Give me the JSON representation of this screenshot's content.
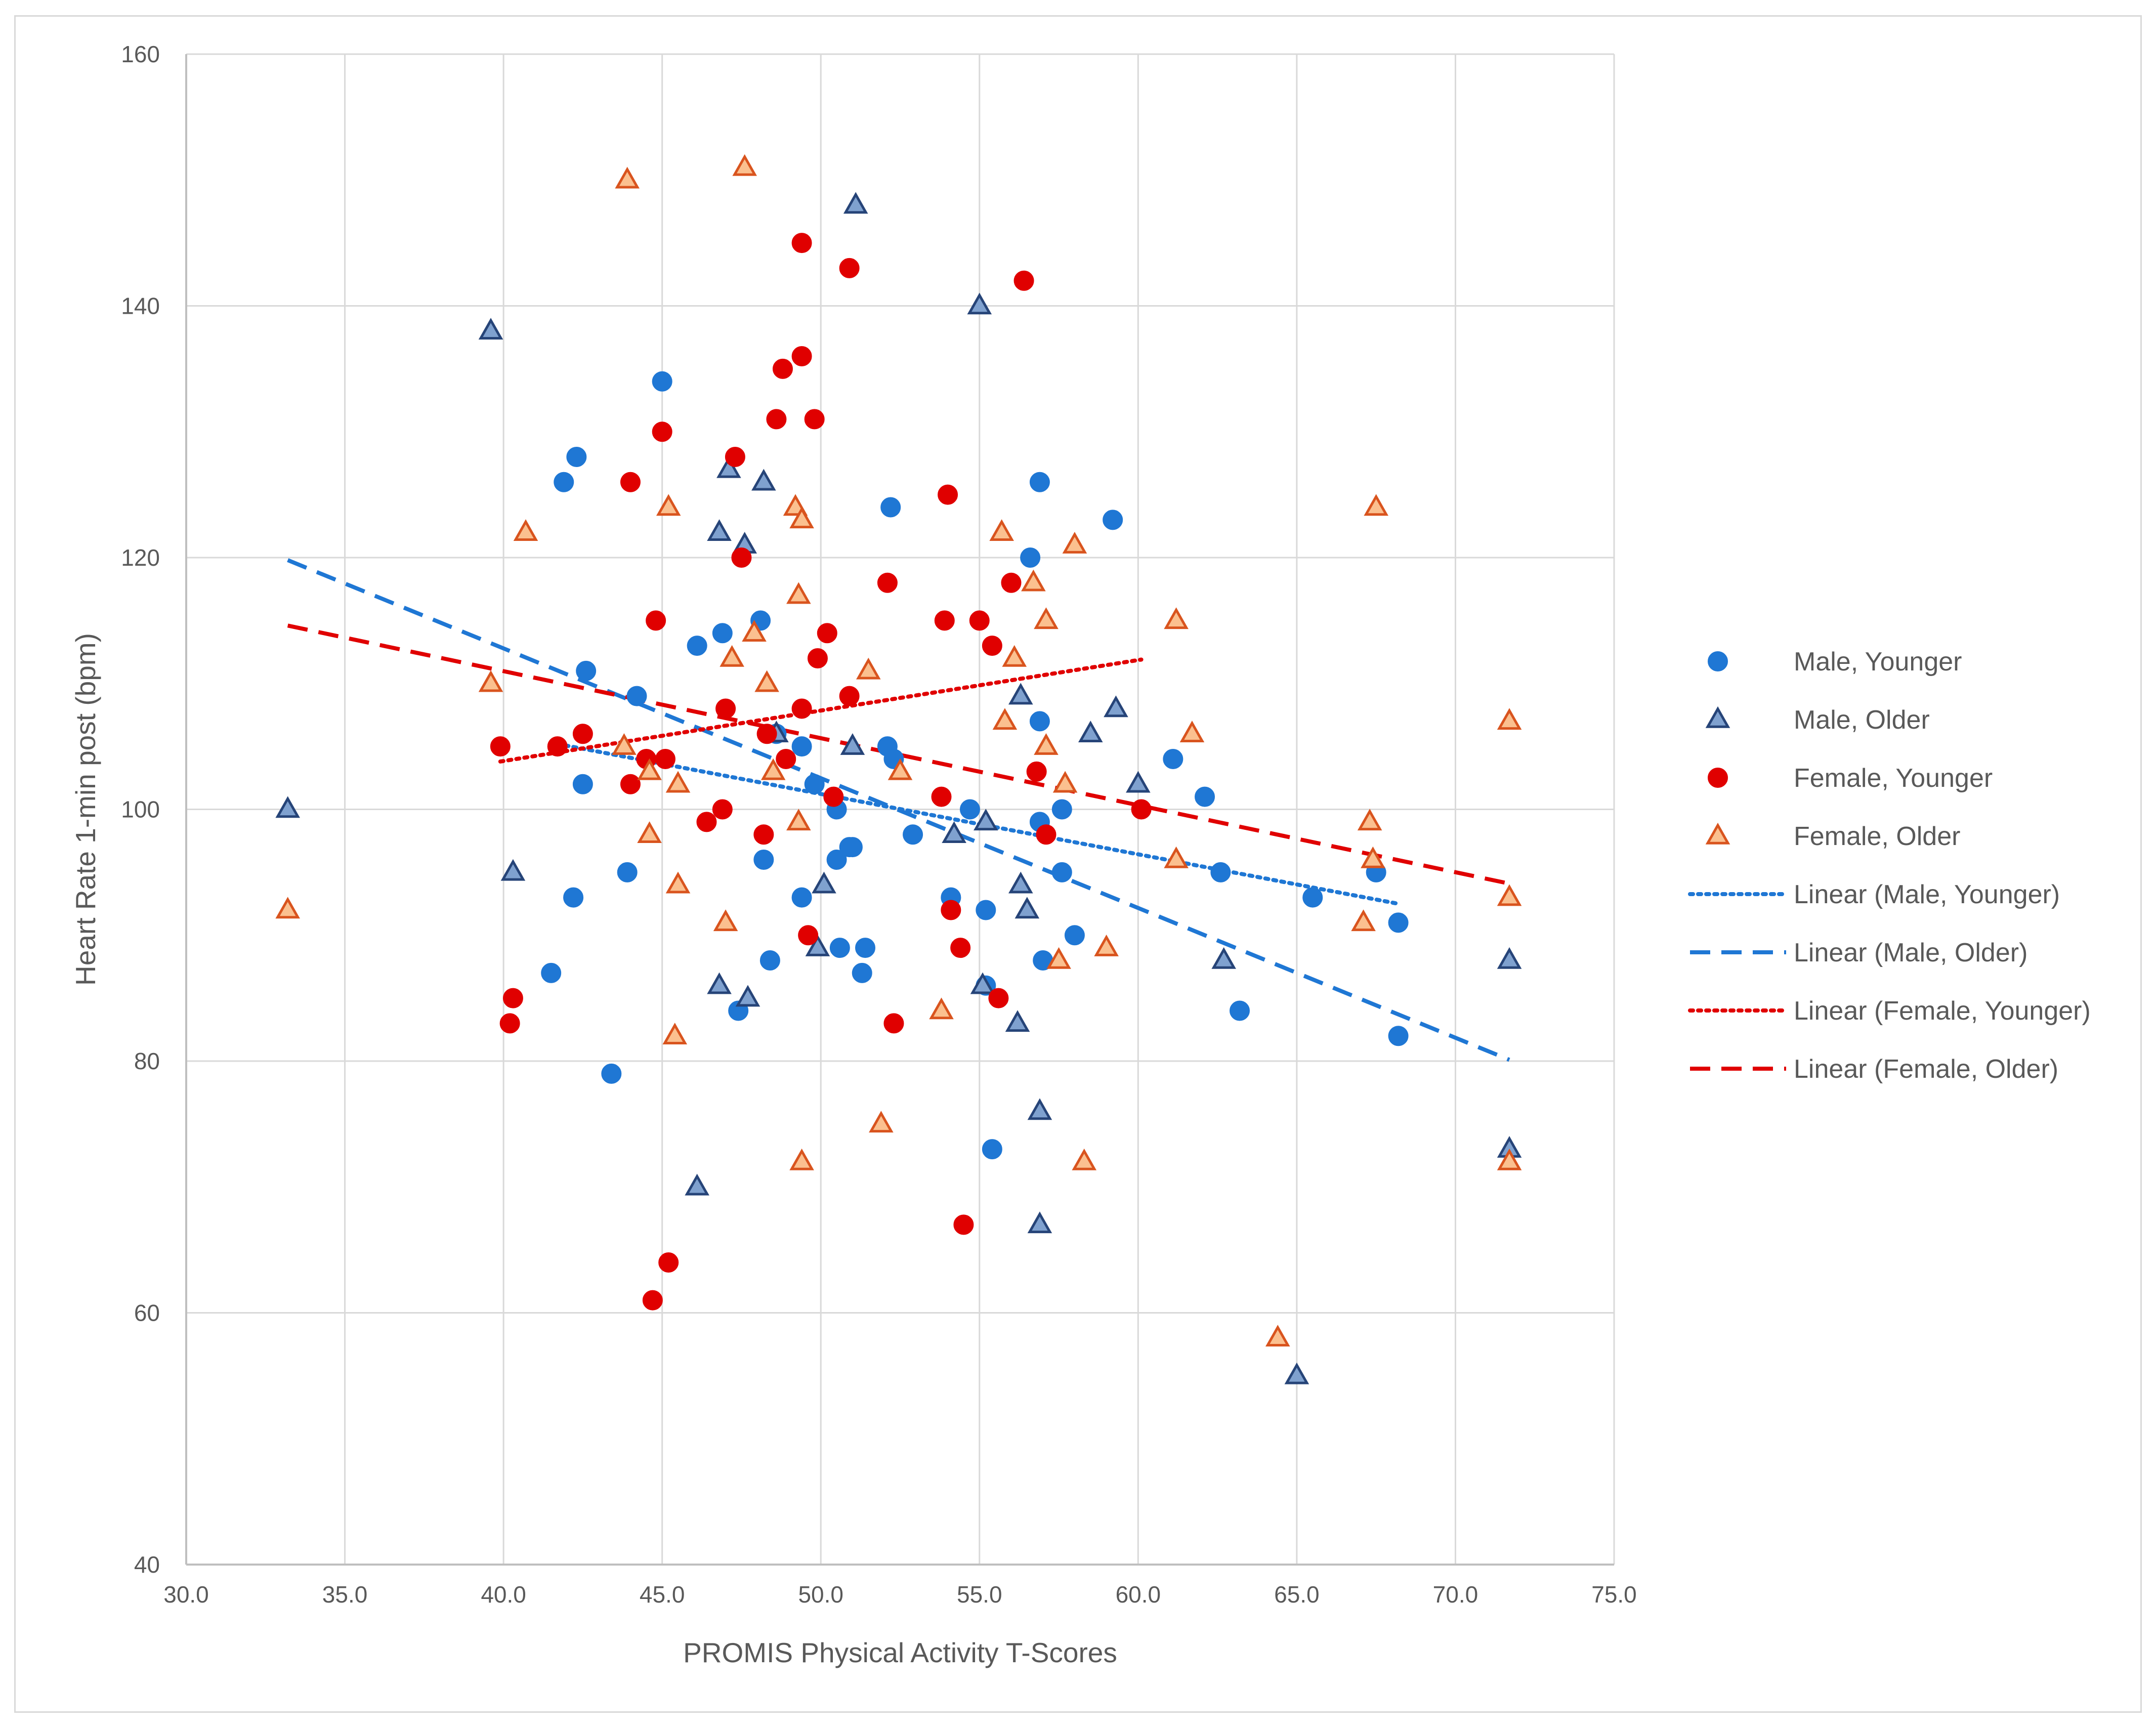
{
  "chart_data": {
    "type": "scatter",
    "title": "",
    "xlabel": "PROMIS Physical Activity T-Scores",
    "ylabel": "Heart Rate 1-min post (bpm)",
    "xlim": [
      30,
      75
    ],
    "ylim": [
      40,
      160
    ],
    "x_ticks": [
      30,
      35,
      40,
      45,
      50,
      55,
      60,
      65,
      70,
      75
    ],
    "x_tick_labels": [
      "30.0",
      "35.0",
      "40.0",
      "45.0",
      "50.0",
      "55.0",
      "60.0",
      "65.0",
      "70.0",
      "75.0"
    ],
    "y_ticks": [
      40,
      60,
      80,
      100,
      120,
      140,
      160
    ],
    "y_tick_labels": [
      "40",
      "60",
      "80",
      "100",
      "120",
      "140",
      "160"
    ],
    "grid": true,
    "legend_position": "right",
    "series": [
      {
        "name": "Male, Younger",
        "marker": "circle",
        "color": "#1f77d4",
        "points": [
          [
            41.9,
            126
          ],
          [
            42.3,
            128
          ],
          [
            42.6,
            111
          ],
          [
            42.5,
            102
          ],
          [
            42.2,
            93
          ],
          [
            41.5,
            87
          ],
          [
            43.4,
            79
          ],
          [
            43.9,
            95
          ],
          [
            44.2,
            109
          ],
          [
            45.0,
            134
          ],
          [
            46.1,
            113
          ],
          [
            46.9,
            114
          ],
          [
            47.4,
            84
          ],
          [
            48.1,
            115
          ],
          [
            48.2,
            96
          ],
          [
            48.4,
            88
          ],
          [
            48.6,
            106
          ],
          [
            49.4,
            105
          ],
          [
            49.4,
            93
          ],
          [
            49.8,
            102
          ],
          [
            50.5,
            100
          ],
          [
            50.5,
            96
          ],
          [
            50.6,
            89
          ],
          [
            50.9,
            97
          ],
          [
            51.0,
            97
          ],
          [
            51.3,
            87
          ],
          [
            51.4,
            89
          ],
          [
            52.1,
            105
          ],
          [
            52.2,
            124
          ],
          [
            52.3,
            104
          ],
          [
            52.9,
            98
          ],
          [
            54.1,
            93
          ],
          [
            54.7,
            100
          ],
          [
            55.2,
            92
          ],
          [
            55.2,
            86
          ],
          [
            55.4,
            73
          ],
          [
            56.6,
            120
          ],
          [
            56.9,
            126
          ],
          [
            56.9,
            99
          ],
          [
            57.0,
            88
          ],
          [
            57.6,
            95
          ],
          [
            57.6,
            100
          ],
          [
            56.9,
            107
          ],
          [
            58.0,
            90
          ],
          [
            59.2,
            123
          ],
          [
            61.1,
            104
          ],
          [
            62.1,
            101
          ],
          [
            62.6,
            95
          ],
          [
            63.2,
            84
          ],
          [
            65.5,
            93
          ],
          [
            67.5,
            95
          ],
          [
            68.2,
            91
          ],
          [
            68.2,
            82
          ]
        ]
      },
      {
        "name": "Male, Older",
        "marker": "triangle",
        "color": "#5b88bf",
        "points": [
          [
            33.2,
            100
          ],
          [
            39.6,
            138
          ],
          [
            40.3,
            95
          ],
          [
            46.1,
            70
          ],
          [
            46.8,
            86
          ],
          [
            46.8,
            122
          ],
          [
            47.1,
            127
          ],
          [
            47.7,
            85
          ],
          [
            47.6,
            121
          ],
          [
            48.2,
            126
          ],
          [
            48.6,
            106
          ],
          [
            49.9,
            89
          ],
          [
            50.1,
            94
          ],
          [
            51.0,
            105
          ],
          [
            51.1,
            148
          ],
          [
            54.2,
            98
          ],
          [
            55.0,
            140
          ],
          [
            55.2,
            99
          ],
          [
            55.1,
            86
          ],
          [
            56.2,
            83
          ],
          [
            56.3,
            94
          ],
          [
            56.5,
            92
          ],
          [
            56.3,
            109
          ],
          [
            56.9,
            76
          ],
          [
            56.9,
            67
          ],
          [
            58.5,
            106
          ],
          [
            59.3,
            108
          ],
          [
            60.0,
            102
          ],
          [
            62.7,
            88
          ],
          [
            65.0,
            55
          ],
          [
            71.7,
            88
          ],
          [
            71.7,
            73
          ]
        ]
      },
      {
        "name": "Female, Younger",
        "marker": "circle",
        "color": "#e00000",
        "points": [
          [
            39.9,
            105
          ],
          [
            40.2,
            83
          ],
          [
            40.3,
            85
          ],
          [
            41.7,
            105
          ],
          [
            42.5,
            106
          ],
          [
            44.0,
            102
          ],
          [
            44.0,
            126
          ],
          [
            44.5,
            104
          ],
          [
            44.7,
            61
          ],
          [
            44.8,
            115
          ],
          [
            45.0,
            130
          ],
          [
            45.1,
            104
          ],
          [
            45.2,
            64
          ],
          [
            46.4,
            99
          ],
          [
            46.9,
            100
          ],
          [
            47.0,
            108
          ],
          [
            47.3,
            128
          ],
          [
            47.5,
            120
          ],
          [
            48.2,
            98
          ],
          [
            48.3,
            106
          ],
          [
            48.6,
            131
          ],
          [
            48.8,
            135
          ],
          [
            48.9,
            104
          ],
          [
            49.4,
            145
          ],
          [
            49.4,
            136
          ],
          [
            49.4,
            108
          ],
          [
            49.6,
            90
          ],
          [
            49.8,
            131
          ],
          [
            49.9,
            112
          ],
          [
            50.2,
            114
          ],
          [
            50.4,
            101
          ],
          [
            50.9,
            143
          ],
          [
            50.9,
            109
          ],
          [
            52.1,
            118
          ],
          [
            52.3,
            83
          ],
          [
            53.8,
            101
          ],
          [
            53.9,
            115
          ],
          [
            54.0,
            125
          ],
          [
            54.1,
            92
          ],
          [
            54.4,
            89
          ],
          [
            54.5,
            67
          ],
          [
            55.0,
            115
          ],
          [
            55.4,
            113
          ],
          [
            55.6,
            85
          ],
          [
            56.0,
            118
          ],
          [
            56.4,
            142
          ],
          [
            56.8,
            103
          ],
          [
            57.1,
            98
          ],
          [
            60.1,
            100
          ]
        ]
      },
      {
        "name": "Female, Older",
        "marker": "triangle",
        "color": "#f28a3a",
        "points": [
          [
            33.2,
            92
          ],
          [
            39.6,
            110
          ],
          [
            40.7,
            122
          ],
          [
            43.8,
            105
          ],
          [
            43.9,
            150
          ],
          [
            44.6,
            98
          ],
          [
            44.6,
            103
          ],
          [
            45.2,
            124
          ],
          [
            45.4,
            82
          ],
          [
            45.5,
            94
          ],
          [
            45.5,
            102
          ],
          [
            47.0,
            91
          ],
          [
            47.2,
            112
          ],
          [
            47.6,
            151
          ],
          [
            47.9,
            114
          ],
          [
            48.3,
            110
          ],
          [
            48.5,
            103
          ],
          [
            49.2,
            124
          ],
          [
            49.3,
            117
          ],
          [
            49.3,
            99
          ],
          [
            49.4,
            123
          ],
          [
            49.4,
            72
          ],
          [
            51.5,
            111
          ],
          [
            51.9,
            75
          ],
          [
            52.5,
            103
          ],
          [
            53.8,
            84
          ],
          [
            55.7,
            122
          ],
          [
            55.8,
            107
          ],
          [
            56.1,
            112
          ],
          [
            56.7,
            118
          ],
          [
            57.1,
            115
          ],
          [
            57.1,
            105
          ],
          [
            57.5,
            88
          ],
          [
            57.7,
            102
          ],
          [
            58.0,
            121
          ],
          [
            58.3,
            72
          ],
          [
            59.0,
            89
          ],
          [
            61.2,
            115
          ],
          [
            61.2,
            96
          ],
          [
            61.7,
            106
          ],
          [
            64.4,
            58
          ],
          [
            67.1,
            91
          ],
          [
            67.3,
            99
          ],
          [
            67.4,
            96
          ],
          [
            67.5,
            124
          ],
          [
            71.7,
            107
          ],
          [
            71.7,
            93
          ],
          [
            71.7,
            72
          ]
        ]
      }
    ],
    "trendlines": [
      {
        "name": "Linear (Male, Younger)",
        "style": "dotted",
        "color": "#1f77d4",
        "x": [
          41.7,
          68.2
        ],
        "y": [
          105.2,
          92.5
        ]
      },
      {
        "name": "Linear (Male, Older)",
        "style": "dashed",
        "color": "#1f77d4",
        "x": [
          33.2,
          71.7
        ],
        "y": [
          119.8,
          80.1
        ]
      },
      {
        "name": "Linear (Female, Younger)",
        "style": "dotted",
        "color": "#e00000",
        "x": [
          39.9,
          60.1
        ],
        "y": [
          103.8,
          111.9
        ]
      },
      {
        "name": "Linear (Female, Older)",
        "style": "dashed",
        "color": "#e00000",
        "x": [
          33.2,
          71.7
        ],
        "y": [
          114.6,
          94.1
        ]
      }
    ]
  }
}
